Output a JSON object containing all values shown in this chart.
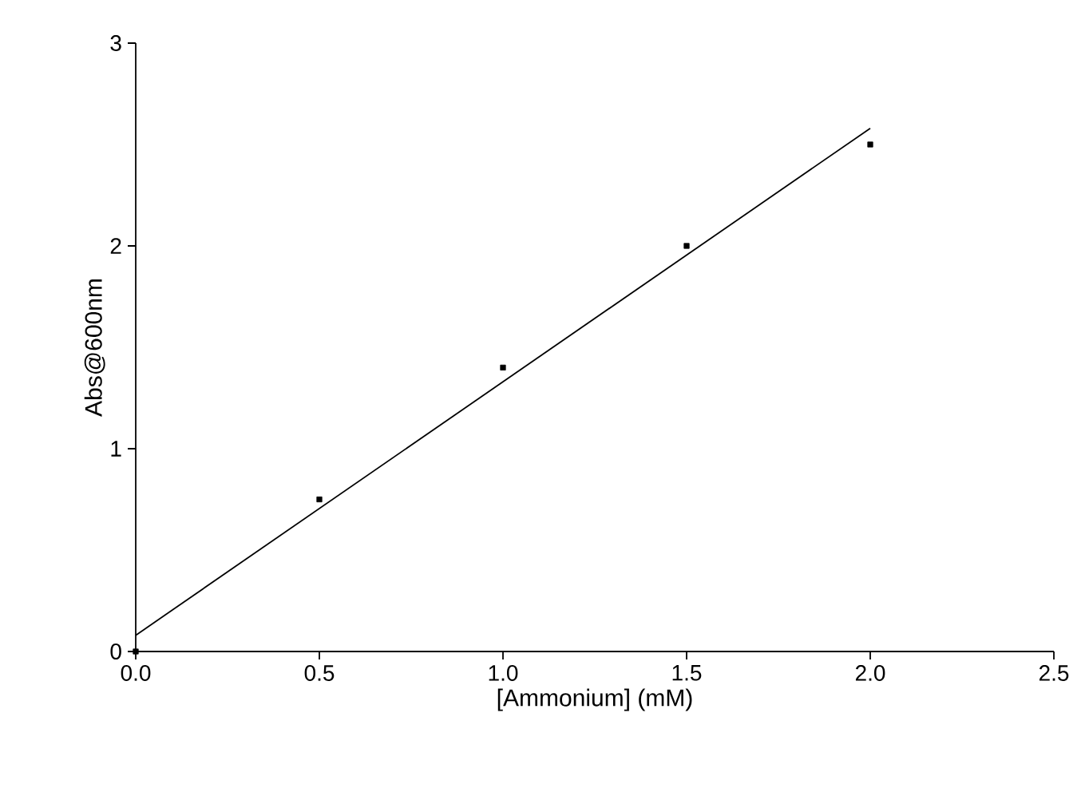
{
  "chart_data": {
    "type": "scatter",
    "xlabel": "[Ammonium] (mM)",
    "ylabel": "Abs@600nm",
    "xlim": [
      0,
      2.5
    ],
    "ylim": [
      0,
      3
    ],
    "xticks": [
      {
        "value": 0,
        "label": "0.0"
      },
      {
        "value": 0.5,
        "label": "0.5"
      },
      {
        "value": 1,
        "label": "1.0"
      },
      {
        "value": 1.5,
        "label": "1.5"
      },
      {
        "value": 2,
        "label": "2.0"
      },
      {
        "value": 2.5,
        "label": "2.5"
      }
    ],
    "yticks": [
      0,
      1,
      2,
      3
    ],
    "grid": false,
    "series": [
      {
        "color": "#000000",
        "marker": "square",
        "x": [
          0,
          0.5,
          1,
          1.5,
          2
        ],
        "values": [
          0,
          0.75,
          1.4,
          2.0,
          2.5
        ]
      },
      {
        "type": "line",
        "color": "#000000",
        "marker": "none",
        "line_style": "solid",
        "x": [
          0,
          2
        ],
        "values": [
          0.08,
          2.58
        ]
      }
    ]
  }
}
